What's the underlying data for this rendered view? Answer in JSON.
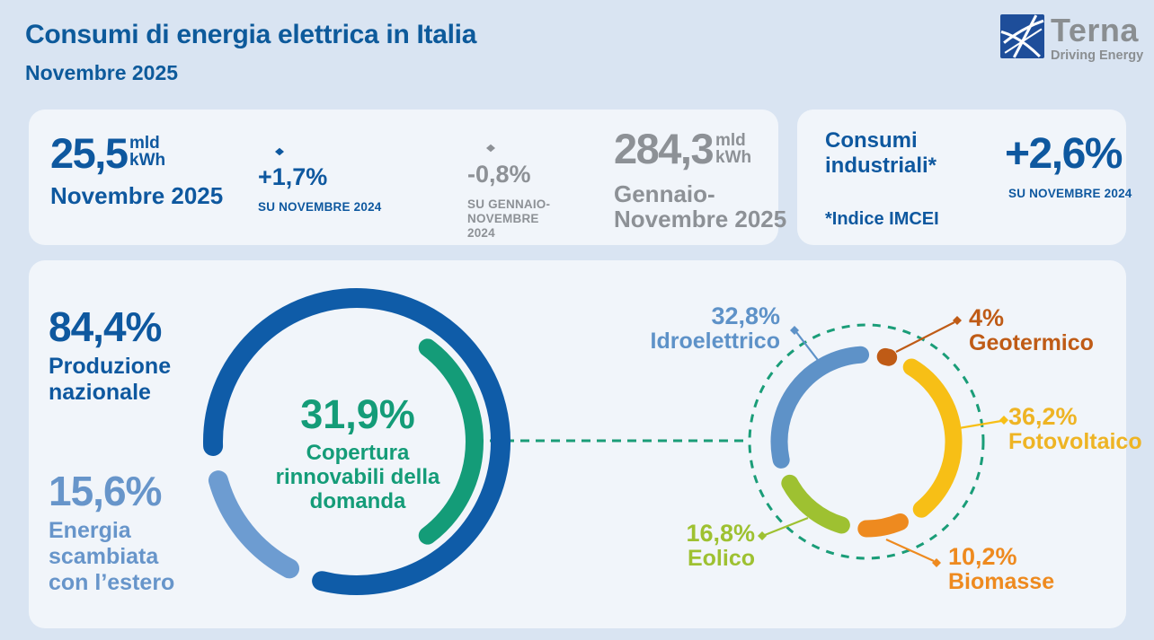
{
  "header": {
    "title": "Consumi di energia elettrica in Italia",
    "subtitle": "Novembre 2025",
    "logo_name": "Terna",
    "logo_tagline": "Driving Energy"
  },
  "cards": {
    "monthly": {
      "value": "25,5",
      "unit_top": "mld",
      "unit_bottom": "kWh",
      "period": "Novembre 2025",
      "delta": "+1,7%",
      "delta_caption": "SU NOVEMBRE 2024"
    },
    "ytd": {
      "value": "284,3",
      "unit_top": "mld",
      "unit_bottom": "kWh",
      "period": "Gennaio-Novembre 2025",
      "delta": "-0,8%",
      "delta_caption": "SU GENNAIO-NOVEMBRE 2024"
    },
    "industrial": {
      "title": "Consumi industriali*",
      "footnote": "*Indice IMCEI",
      "delta": "+2,6%",
      "delta_caption": "SU NOVEMBRE 2024"
    }
  },
  "chart_data": [
    {
      "type": "donut",
      "name": "copertura-domanda",
      "center_value": "31,9%",
      "center_label": "Copertura rinnovabili della domanda",
      "segments": [
        {
          "label": "Produzione nazionale",
          "value_label": "84,4%",
          "value": 84.4,
          "color": "#0f5ca8"
        },
        {
          "label": "Energia scambiata con l’estero",
          "value_label": "15,6%",
          "value": 15.6,
          "color": "#6d9cd1"
        }
      ],
      "inner_segment": {
        "label": "Copertura rinnovabili della domanda",
        "value_label": "31,9%",
        "value": 31.9,
        "color": "#149c78"
      }
    },
    {
      "type": "donut",
      "name": "mix-rinnovabili",
      "legend_position": "callouts",
      "segments": [
        {
          "label": "Geotermico",
          "value_label": "4%",
          "value": 4,
          "color": "#bf5b16"
        },
        {
          "label": "Fotovoltaico",
          "value_label": "36,2%",
          "value": 36.2,
          "color": "#f7bf16"
        },
        {
          "label": "Biomasse",
          "value_label": "10,2%",
          "value": 10.2,
          "color": "#ee8a1f"
        },
        {
          "label": "Eolico",
          "value_label": "16,8%",
          "value": 16.8,
          "color": "#9ec131"
        },
        {
          "label": "Idroelettrico",
          "value_label": "32,8%",
          "value": 32.8,
          "color": "#5e92c8"
        }
      ]
    }
  ]
}
